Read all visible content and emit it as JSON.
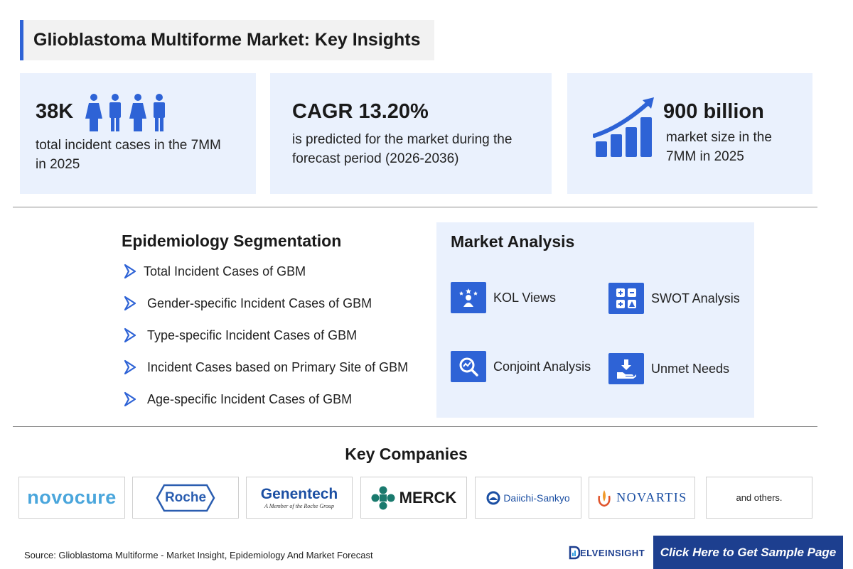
{
  "title": "Glioblastoma Multiforme Market: Key Insights",
  "stats": [
    {
      "value": "38K",
      "text_lines": [
        "total incident cases in the 7MM",
        "in 2025"
      ],
      "icon": "people-icon"
    },
    {
      "value": "CAGR 13.20%",
      "text_lines": [
        "is predicted for the market during the",
        "forecast period (2026-2036)"
      ]
    },
    {
      "value": "900 billion",
      "text_lines": [
        "market size in the",
        "7MM in 2025"
      ],
      "icon": "growth-chart-icon"
    }
  ],
  "epidemiology": {
    "title": "Epidemiology Segmentation",
    "items": [
      "Total Incident Cases of GBM",
      "Gender-specific Incident Cases of GBM",
      "Type-specific Incident Cases of GBM",
      "Incident Cases based on Primary Site of GBM",
      "Age-specific Incident Cases of GBM"
    ]
  },
  "market_analysis": {
    "title": "Market Analysis",
    "items": [
      {
        "label": "KOL Views",
        "icon": "kol-icon"
      },
      {
        "label": "SWOT Analysis",
        "icon": "swot-icon"
      },
      {
        "label": "Conjoint Analysis",
        "icon": "conjoint-icon"
      },
      {
        "label": "Unmet Needs",
        "icon": "unmet-needs-icon"
      }
    ]
  },
  "companies": {
    "title": "Key Companies",
    "logos": [
      "novocure",
      "Roche",
      "Genentech",
      "A Member of the Roche Group",
      "MERCK",
      "Daiichi-Sankyo",
      "NOVARTIS"
    ],
    "others": "and others."
  },
  "colors": {
    "accent": "#2e63d6",
    "panel": "#eaf1fd",
    "cta": "#1d3f8f"
  },
  "footer": {
    "source": "Source: Glioblastoma Multiforme - Market Insight, Epidemiology And Market Forecast",
    "brand": "ELVEINSIGHT",
    "cta": "Click Here to Get Sample Page"
  }
}
